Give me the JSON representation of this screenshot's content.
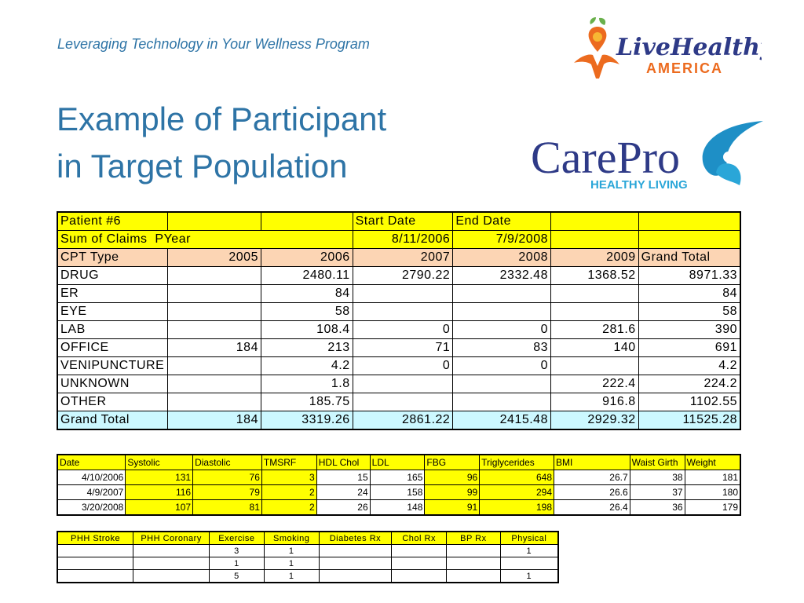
{
  "header": {
    "subtitle": "Leveraging Technology in Your Wellness Program",
    "title_line1": "Example of Participant",
    "title_line2": "in Target Population"
  },
  "logos": {
    "livehealthy_script": "LiveHealthy",
    "livehealthy_sub": "AMERICA",
    "carepro_name": "CarePro",
    "carepro_tagline": "HEALTHY LIVING",
    "colors": {
      "orange": "#ec6b1f",
      "green": "#6ab04c",
      "navy": "#2e3a87",
      "blue": "#1e8fc6",
      "cyan": "#2aa6d8"
    }
  },
  "claims": {
    "patient": "Patient #6",
    "start_label": "Start Date",
    "end_label": "End Date",
    "sum_label": "Sum of Claims",
    "py_label": "PYear",
    "start_date": "8/11/2006",
    "end_date": "7/9/2008",
    "cpt_label": "CPT Type",
    "years": [
      "2005",
      "2006",
      "2007",
      "2008",
      "2009"
    ],
    "grand_label": "Grand Total",
    "rows": [
      {
        "type": "DRUG",
        "v": [
          "",
          "2480.11",
          "2790.22",
          "2332.48",
          "1368.52"
        ],
        "total": "8971.33"
      },
      {
        "type": "ER",
        "v": [
          "",
          "84",
          "",
          "",
          ""
        ],
        "total": "84"
      },
      {
        "type": "EYE",
        "v": [
          "",
          "58",
          "",
          "",
          ""
        ],
        "total": "58"
      },
      {
        "type": "LAB",
        "v": [
          "",
          "108.4",
          "0",
          "0",
          "281.6"
        ],
        "total": "390"
      },
      {
        "type": "OFFICE",
        "v": [
          "184",
          "213",
          "71",
          "83",
          "140"
        ],
        "total": "691"
      },
      {
        "type": "VENIPUNCTURE",
        "v": [
          "",
          "4.2",
          "0",
          "0",
          ""
        ],
        "total": "4.2"
      },
      {
        "type": "UNKNOWN",
        "v": [
          "",
          "1.8",
          "",
          "",
          "222.4"
        ],
        "total": "224.2"
      },
      {
        "type": "OTHER",
        "v": [
          "",
          "185.75",
          "",
          "",
          "916.8"
        ],
        "total": "1102.55"
      }
    ],
    "grand": {
      "label": "Grand Total",
      "v": [
        "184",
        "3319.26",
        "2861.22",
        "2415.48",
        "2929.32"
      ],
      "total": "11525.28"
    }
  },
  "vitals": {
    "headers": [
      "Date",
      "Systolic",
      "Diastolic",
      "TMSRF",
      "HDL Chol",
      "LDL",
      "FBG",
      "Triglycerides",
      "BMI",
      "Waist Girth",
      "Weight"
    ],
    "rows": [
      [
        "4/10/2006",
        "131",
        "76",
        "3",
        "15",
        "165",
        "96",
        "648",
        "26.7",
        "38",
        "181"
      ],
      [
        "4/9/2007",
        "116",
        "79",
        "2",
        "24",
        "158",
        "99",
        "294",
        "26.6",
        "37",
        "180"
      ],
      [
        "3/20/2008",
        "107",
        "81",
        "2",
        "26",
        "148",
        "91",
        "198",
        "26.4",
        "36",
        "179"
      ]
    ]
  },
  "history": {
    "headers": [
      "PHH Stroke",
      "PHH Coronary",
      "Exercise",
      "Smoking",
      "Diabetes Rx",
      "Chol Rx",
      "BP Rx",
      "Physical"
    ],
    "rows": [
      [
        "",
        "",
        "3",
        "1",
        "",
        "",
        "",
        "1"
      ],
      [
        "",
        "",
        "1",
        "1",
        "",
        "",
        "",
        ""
      ],
      [
        "",
        "",
        "5",
        "1",
        "",
        "",
        "",
        "1"
      ]
    ]
  }
}
